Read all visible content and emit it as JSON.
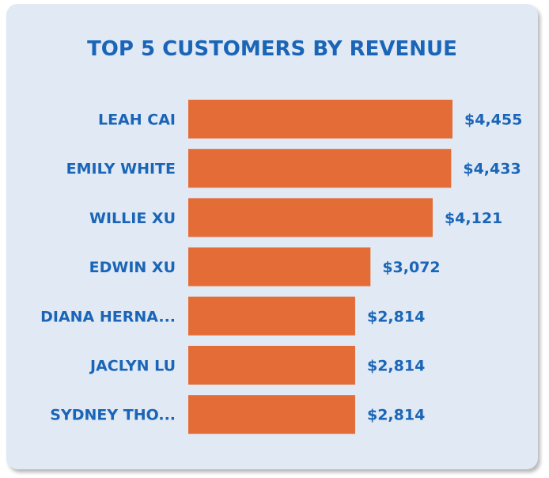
{
  "chart_data": {
    "type": "bar",
    "orientation": "horizontal",
    "title": "TOP 5 CUSTOMERS BY REVENUE",
    "categories": [
      "LEAH CAI",
      "EMILY WHITE",
      "WILLIE XU",
      "EDWIN XU",
      "DIANA HERNA...",
      "JACLYN LU",
      "SYDNEY THO..."
    ],
    "values": [
      4455,
      4433,
      4121,
      3072,
      2814,
      2814,
      2814
    ],
    "value_labels": [
      "$4,455",
      "$4,433",
      "$4,121",
      "$3,072",
      "$2,814",
      "$2,814",
      "$2,814"
    ],
    "xlim": [
      0,
      4455
    ],
    "xlabel": "",
    "ylabel": "",
    "grid": false,
    "legend": "none",
    "bar_color": "#e36c37",
    "text_color": "#1a65b7",
    "background_color": "#e0e9f4"
  }
}
